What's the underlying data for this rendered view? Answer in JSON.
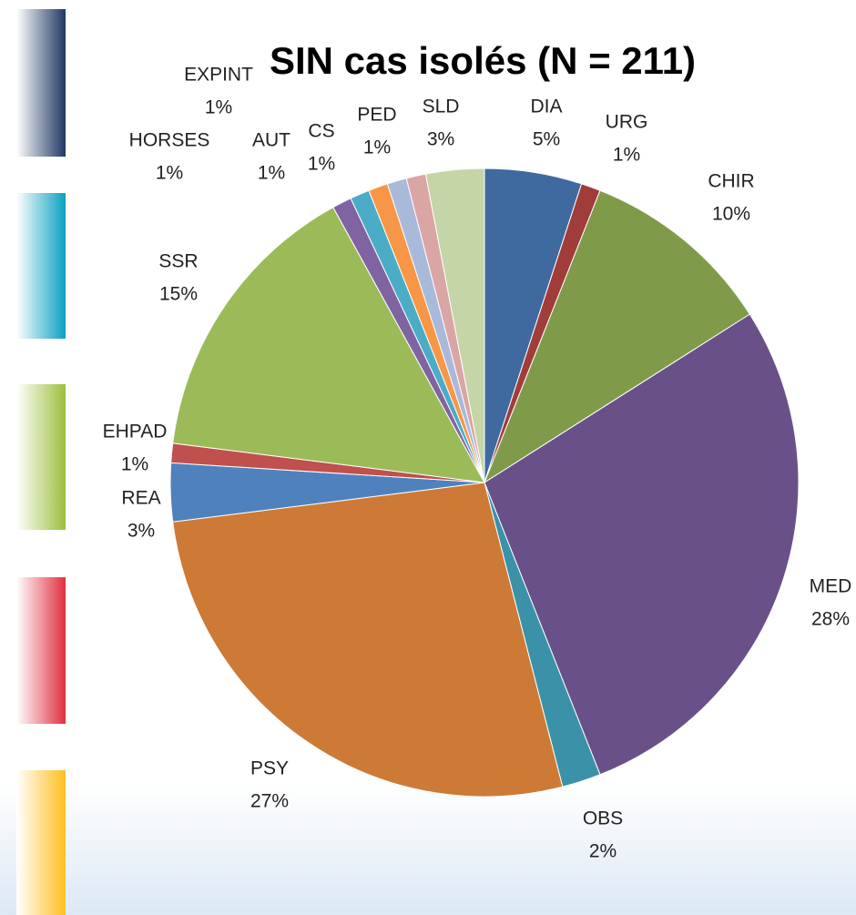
{
  "chart_data": {
    "type": "pie",
    "title": "SIN cas isolés (N = 211)",
    "categories": [
      "DIA",
      "URG",
      "CHIR",
      "MED",
      "OBS",
      "PSY",
      "REA",
      "EHPAD",
      "SSR",
      "HORSES",
      "EXPINT",
      "AUT",
      "CS",
      "PED",
      "SLD"
    ],
    "values": [
      5,
      1,
      10,
      28,
      2,
      27,
      3,
      1,
      15,
      1,
      1,
      1,
      1,
      1,
      3
    ],
    "value_labels": [
      "5%",
      "1%",
      "10%",
      "28%",
      "2%",
      "27%",
      "3%",
      "1%",
      "15%",
      "1%",
      "1%",
      "1%",
      "1%",
      "1%",
      "3%"
    ],
    "colors": [
      "#3f6aa0",
      "#a03c3a",
      "#7f9b4a",
      "#6a5088",
      "#3a91a8",
      "#cd7a37",
      "#4f81bd",
      "#c0504d",
      "#9bbb59",
      "#8064a2",
      "#4bacc6",
      "#f79646",
      "#a9b9d9",
      "#d9a5a5",
      "#c5d5a8"
    ]
  }
}
